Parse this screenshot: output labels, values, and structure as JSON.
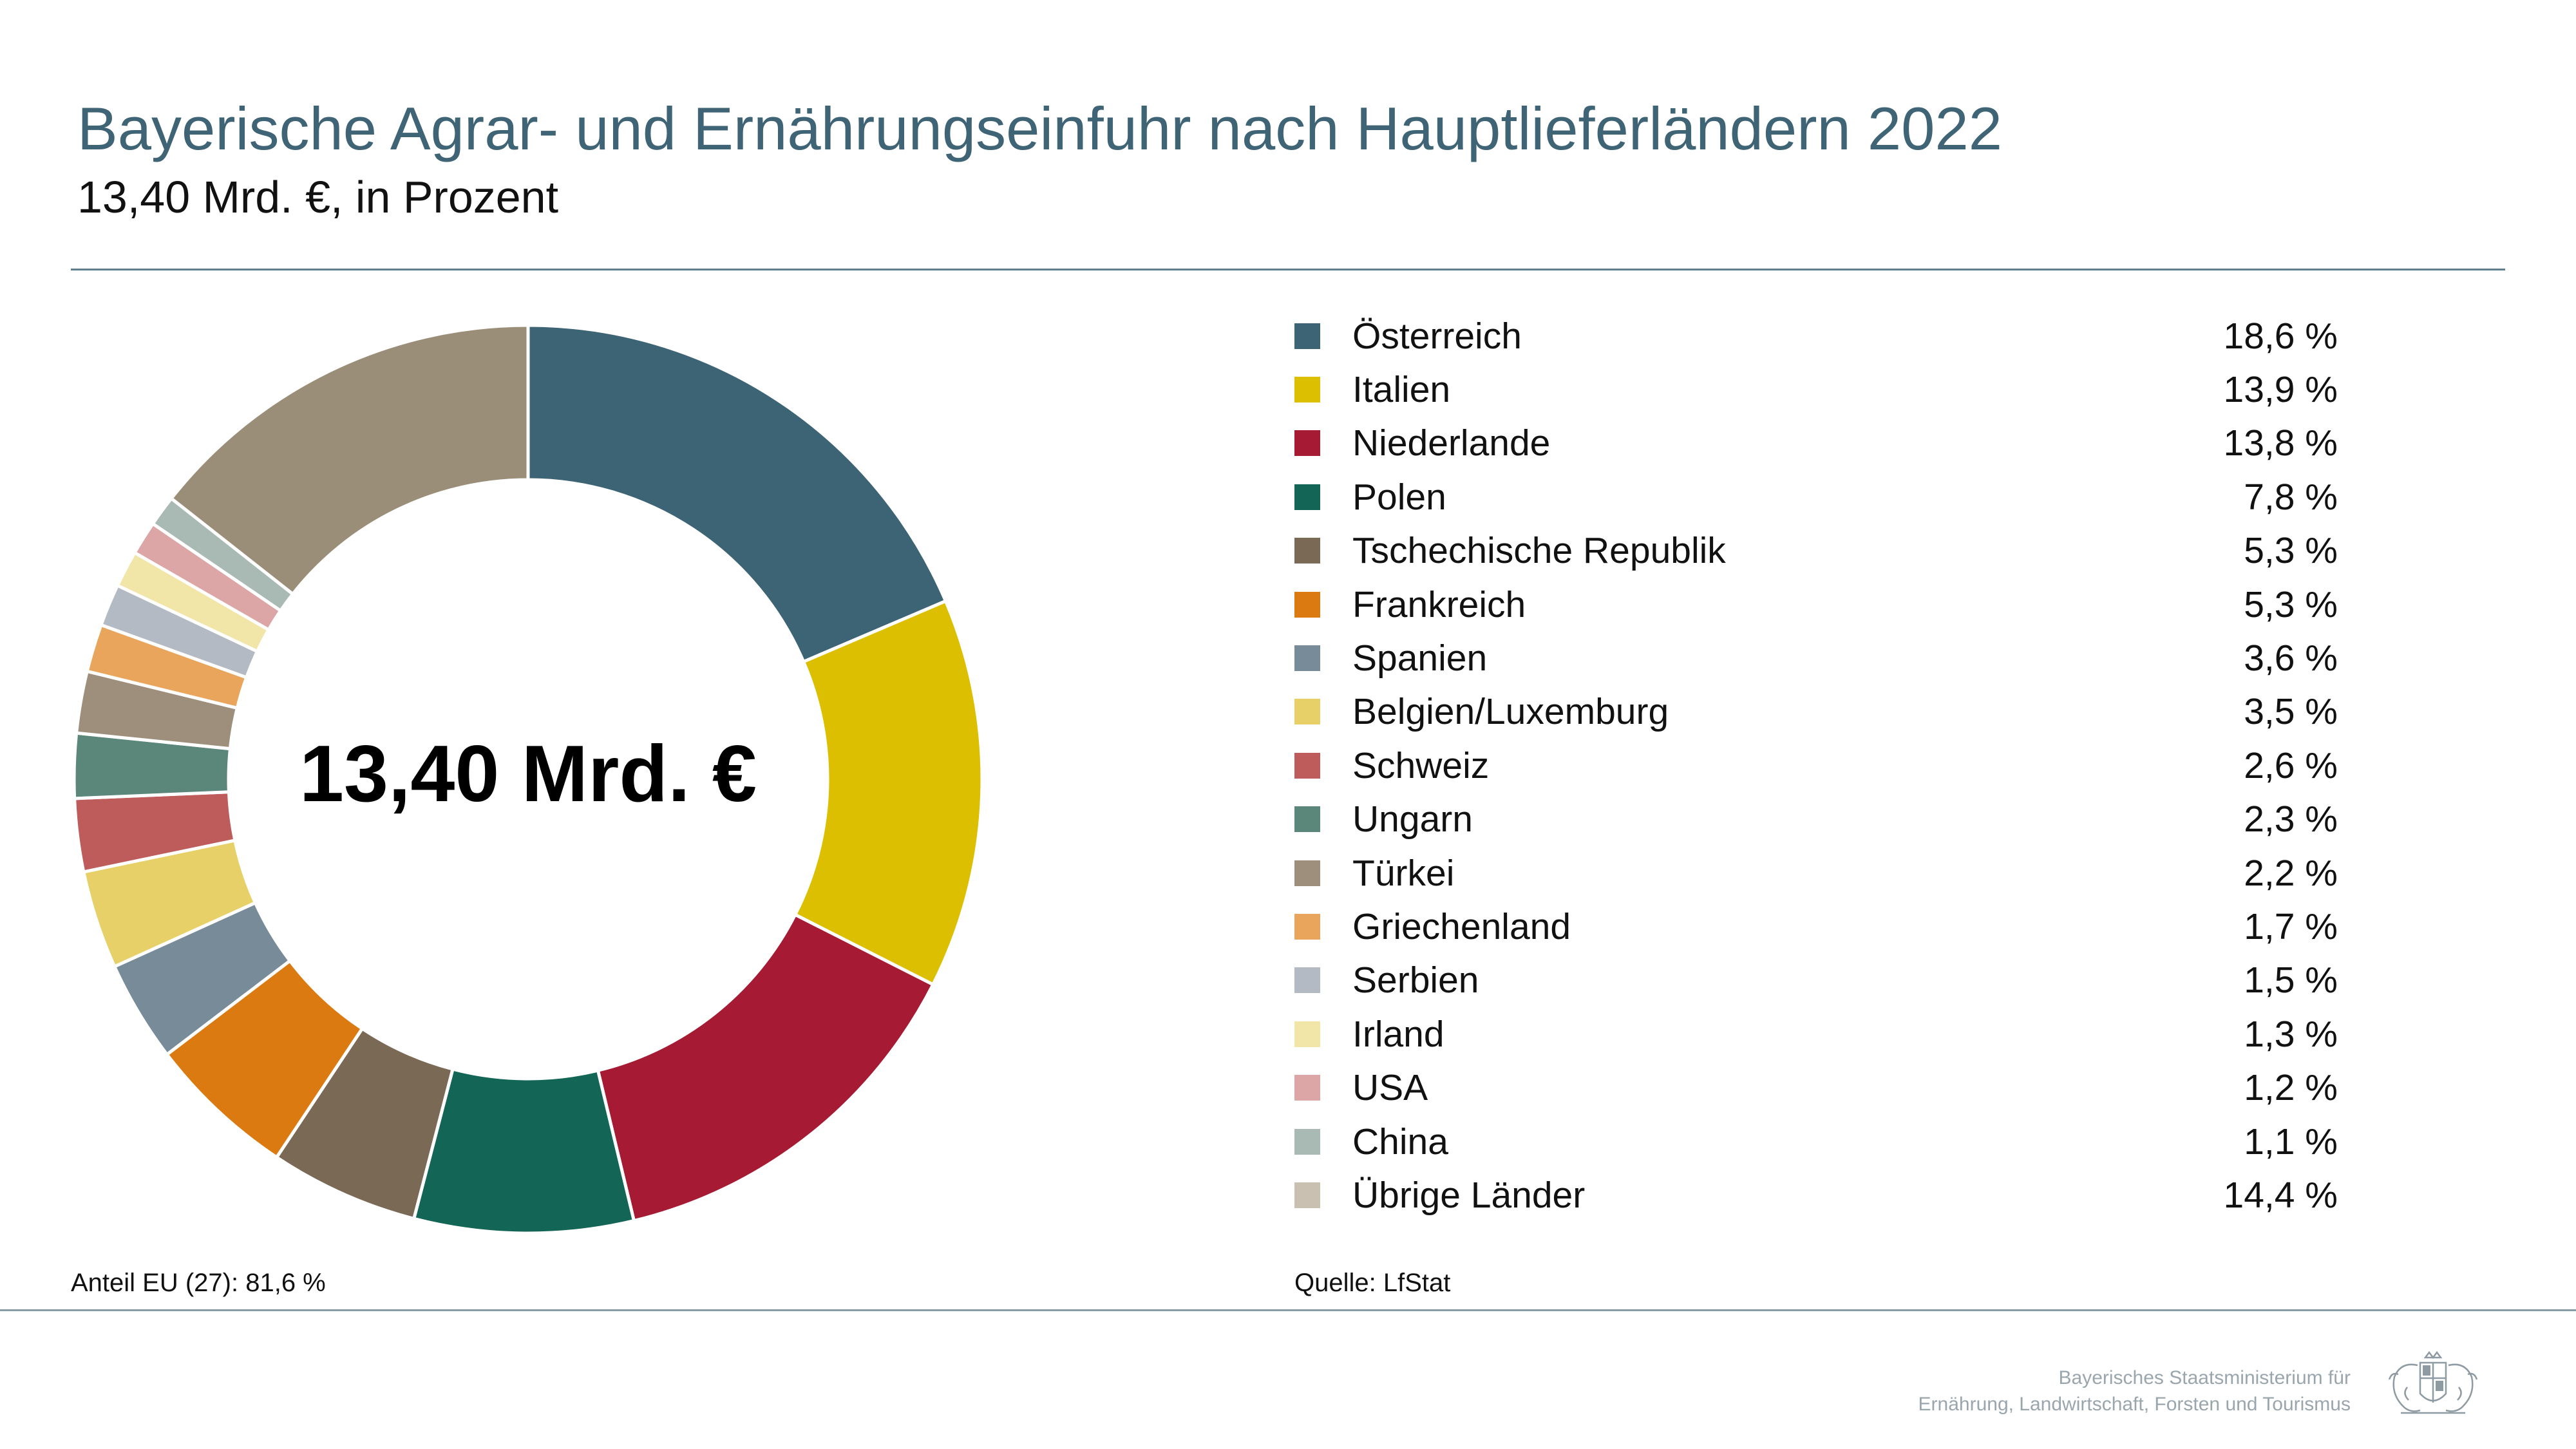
{
  "header": {
    "title": "Bayerische Agrar- und Ernährungseinfuhr nach Hauptlieferländern 2022",
    "subtitle": "13,40 Mrd. €, in Prozent"
  },
  "center_label": "13,40 Mrd. €",
  "notes": {
    "eu_share": "Anteil EU (27): 81,6 %",
    "source": "Quelle: LfStat"
  },
  "footer": {
    "ministry_line1": "Bayerisches Staatsministerium für",
    "ministry_line2": "Ernährung, Landwirtschaft, Forsten und Tourismus",
    "logo_icon": "bavarian-coat-of-arms-icon"
  },
  "chart_data": {
    "type": "pie",
    "donut": true,
    "title": "Bayerische Agrar- und Ernährungseinfuhr nach Hauptlieferländern 2022",
    "subtitle": "13,40 Mrd. €, in Prozent",
    "legend_position": "right",
    "slices": [
      {
        "label": "Österreich",
        "value": 18.6,
        "display": "18,6 %",
        "color": "#3d6475"
      },
      {
        "label": "Italien",
        "value": 13.9,
        "display": "13,9 %",
        "color": "#dcbf00"
      },
      {
        "label": "Niederlande",
        "value": 13.8,
        "display": "13,8 %",
        "color": "#a61a34"
      },
      {
        "label": "Polen",
        "value": 7.8,
        "display": "7,8 %",
        "color": "#136556"
      },
      {
        "label": "Tschechische Republik",
        "value": 5.3,
        "display": "5,3 %",
        "color": "#7a6a55"
      },
      {
        "label": "Frankreich",
        "value": 5.3,
        "display": "5,3 %",
        "color": "#dc7a12"
      },
      {
        "label": "Spanien",
        "value": 3.6,
        "display": "3,6 %",
        "color": "#788b98"
      },
      {
        "label": "Belgien/Luxemburg",
        "value": 3.5,
        "display": "3,5 %",
        "color": "#e6d067"
      },
      {
        "label": "Schweiz",
        "value": 2.6,
        "display": "2,6 %",
        "color": "#be5b5b"
      },
      {
        "label": "Ungarn",
        "value": 2.3,
        "display": "2,3 %",
        "color": "#5b877a"
      },
      {
        "label": "Türkei",
        "value": 2.2,
        "display": "2,2 %",
        "color": "#9d8f7c"
      },
      {
        "label": "Griechenland",
        "value": 1.7,
        "display": "1,7 %",
        "color": "#e9a55b"
      },
      {
        "label": "Serbien",
        "value": 1.5,
        "display": "1,5 %",
        "color": "#b3bac4"
      },
      {
        "label": "Irland",
        "value": 1.3,
        "display": "1,3 %",
        "color": "#f2e5a8"
      },
      {
        "label": "USA",
        "value": 1.2,
        "display": "1,2 %",
        "color": "#dca6a6"
      },
      {
        "label": "China",
        "value": 1.1,
        "display": "1,1 %",
        "color": "#a8bab3"
      },
      {
        "label": "Übrige Länder",
        "value": 14.4,
        "display": "14,4 %",
        "color": "#9b8e78",
        "legend_color": "#c9c0b2"
      }
    ]
  }
}
